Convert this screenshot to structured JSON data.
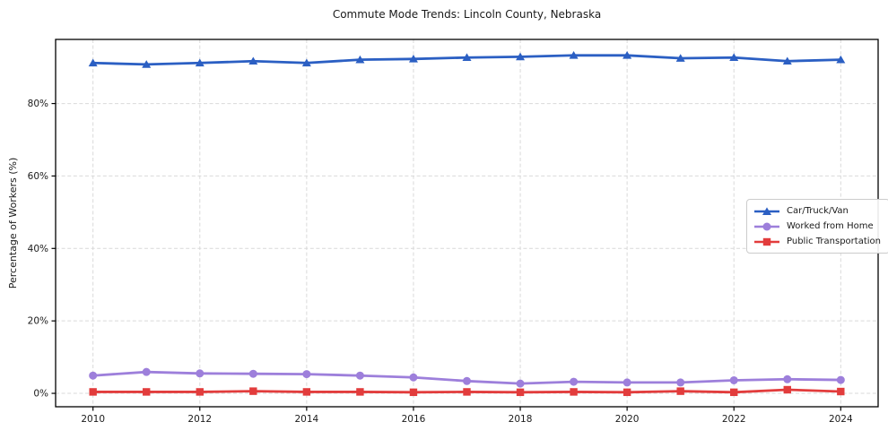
{
  "title": "Commute Mode Trends: Lincoln County, Nebraska",
  "ylabel": "Percentage of Workers (%)",
  "colors": {
    "car": "#2b5fc3",
    "home": "#9d7fdb",
    "transit": "#e23c3c",
    "grid": "#d9d9d9",
    "spine": "#000000",
    "text": "#1a1a1a",
    "legend_border": "#cccccc"
  },
  "chart_data": {
    "type": "line",
    "title": "Commute Mode Trends: Lincoln County, Nebraska",
    "xlabel": "",
    "ylabel": "Percentage of Workers (%)",
    "x": [
      2010,
      2011,
      2012,
      2013,
      2014,
      2015,
      2016,
      2017,
      2018,
      2019,
      2020,
      2021,
      2022,
      2023,
      2024
    ],
    "series": [
      {
        "name": "Car/Truck/Van",
        "marker": "triangle",
        "color": "#2b5fc3",
        "values": [
          91.2,
          90.8,
          91.2,
          91.7,
          91.2,
          92.1,
          92.3,
          92.7,
          92.9,
          93.3,
          93.3,
          92.5,
          92.7,
          91.7,
          92.1
        ]
      },
      {
        "name": "Worked from Home",
        "marker": "circle",
        "color": "#9d7fdb",
        "values": [
          4.9,
          5.9,
          5.5,
          5.4,
          5.3,
          4.9,
          4.4,
          3.4,
          2.7,
          3.2,
          3.0,
          3.0,
          3.6,
          3.9,
          3.7
        ]
      },
      {
        "name": "Public Transportation",
        "marker": "square",
        "color": "#e23c3c",
        "values": [
          0.4,
          0.4,
          0.4,
          0.6,
          0.4,
          0.4,
          0.3,
          0.4,
          0.3,
          0.4,
          0.3,
          0.6,
          0.3,
          1.0,
          0.5
        ]
      }
    ],
    "xlim": [
      2009.3,
      2024.7
    ],
    "ylim": [
      -3.7,
      97.7
    ],
    "xticks": [
      2010,
      2012,
      2014,
      2016,
      2018,
      2020,
      2022,
      2024
    ],
    "xtick_labels": [
      "2010",
      "2012",
      "2014",
      "2016",
      "2018",
      "2020",
      "2022",
      "2024"
    ],
    "yticks": [
      0,
      20,
      40,
      60,
      80
    ],
    "ytick_labels": [
      "0%",
      "20%",
      "40%",
      "60%",
      "80%"
    ],
    "grid": "dashed",
    "legend_position": "center right"
  }
}
